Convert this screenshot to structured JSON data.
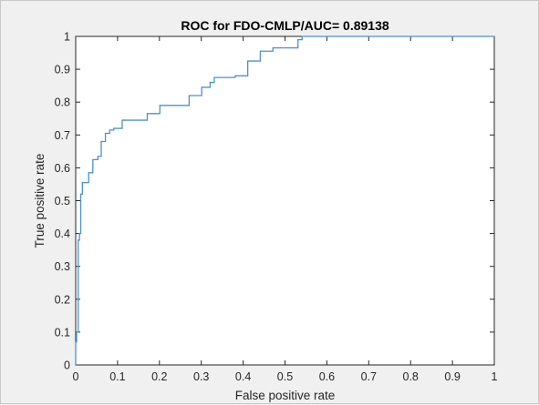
{
  "chart_data": {
    "type": "line",
    "title": "ROC for FDO-CMLP/AUC= 0.89138",
    "xlabel": "False positive rate",
    "ylabel": "True positive rate",
    "xlim": [
      0,
      1
    ],
    "ylim": [
      0,
      1
    ],
    "x_ticks": [
      "0",
      "0.1",
      "0.2",
      "0.3",
      "0.4",
      "0.5",
      "0.6",
      "0.7",
      "0.8",
      "0.9",
      "1"
    ],
    "y_ticks": [
      "0",
      "0.1",
      "0.2",
      "0.3",
      "0.4",
      "0.5",
      "0.6",
      "0.7",
      "0.8",
      "0.9",
      "1"
    ],
    "grid": false,
    "legend": false,
    "colors": {
      "line": "#4a90d9",
      "axes": "#262626",
      "plot_bg": "#ffffff",
      "figure_bg": "#f0f0f0"
    },
    "series": [
      {
        "x": [
          0,
          0,
          0.002,
          0.002,
          0.006,
          0.006,
          0.009,
          0.009,
          0.012,
          0.012,
          0.016,
          0.016,
          0.031,
          0.031,
          0.041,
          0.041,
          0.053,
          0.053,
          0.061,
          0.061,
          0.071,
          0.071,
          0.081,
          0.081,
          0.091,
          0.091,
          0.111,
          0.111,
          0.171,
          0.171,
          0.201,
          0.201,
          0.271,
          0.271,
          0.301,
          0.301,
          0.321,
          0.321,
          0.331,
          0.331,
          0.381,
          0.381,
          0.411,
          0.411,
          0.441,
          0.441,
          0.471,
          0.471,
          0.531,
          0.531,
          0.541,
          0.541,
          1.0
        ],
        "y": [
          0,
          0.07,
          0.07,
          0.1,
          0.1,
          0.38,
          0.38,
          0.4,
          0.4,
          0.52,
          0.52,
          0.555,
          0.555,
          0.585,
          0.585,
          0.625,
          0.625,
          0.635,
          0.635,
          0.68,
          0.68,
          0.705,
          0.705,
          0.715,
          0.715,
          0.72,
          0.72,
          0.745,
          0.745,
          0.765,
          0.765,
          0.79,
          0.79,
          0.82,
          0.82,
          0.845,
          0.845,
          0.86,
          0.86,
          0.875,
          0.875,
          0.88,
          0.88,
          0.925,
          0.925,
          0.955,
          0.955,
          0.965,
          0.965,
          0.99,
          0.99,
          1.0,
          1.0
        ]
      }
    ]
  }
}
